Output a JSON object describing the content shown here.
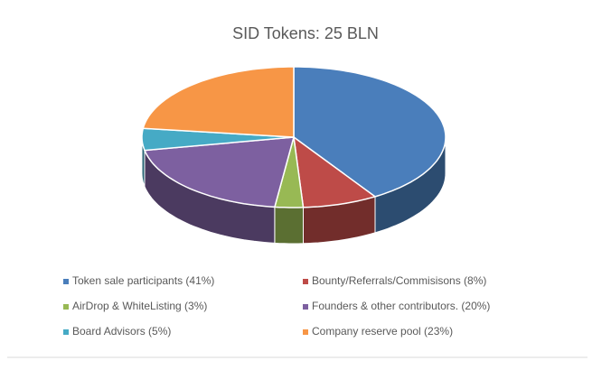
{
  "chart_data": {
    "type": "pie",
    "title": "SID Tokens: 25 BLN",
    "series": [
      {
        "name": "Token sale participants (41%)",
        "color": "#4a7ebb",
        "values": [
          41
        ]
      },
      {
        "name": "Bounty/Referrals/Commisisons (8%)",
        "color": "#be4b48",
        "values": [
          8
        ]
      },
      {
        "name": "AirDrop & WhiteListing (3%)",
        "color": "#98b954",
        "values": [
          3
        ]
      },
      {
        "name": "Founders & other contributors. (20%)",
        "color": "#7d60a0",
        "values": [
          20
        ]
      },
      {
        "name": "Board Advisors (5%)",
        "color": "#46aac5",
        "values": [
          5
        ]
      },
      {
        "name": "Company reserve pool (23%)",
        "color": "#f79646",
        "values": [
          23
        ]
      }
    ],
    "legend": "bottom"
  }
}
